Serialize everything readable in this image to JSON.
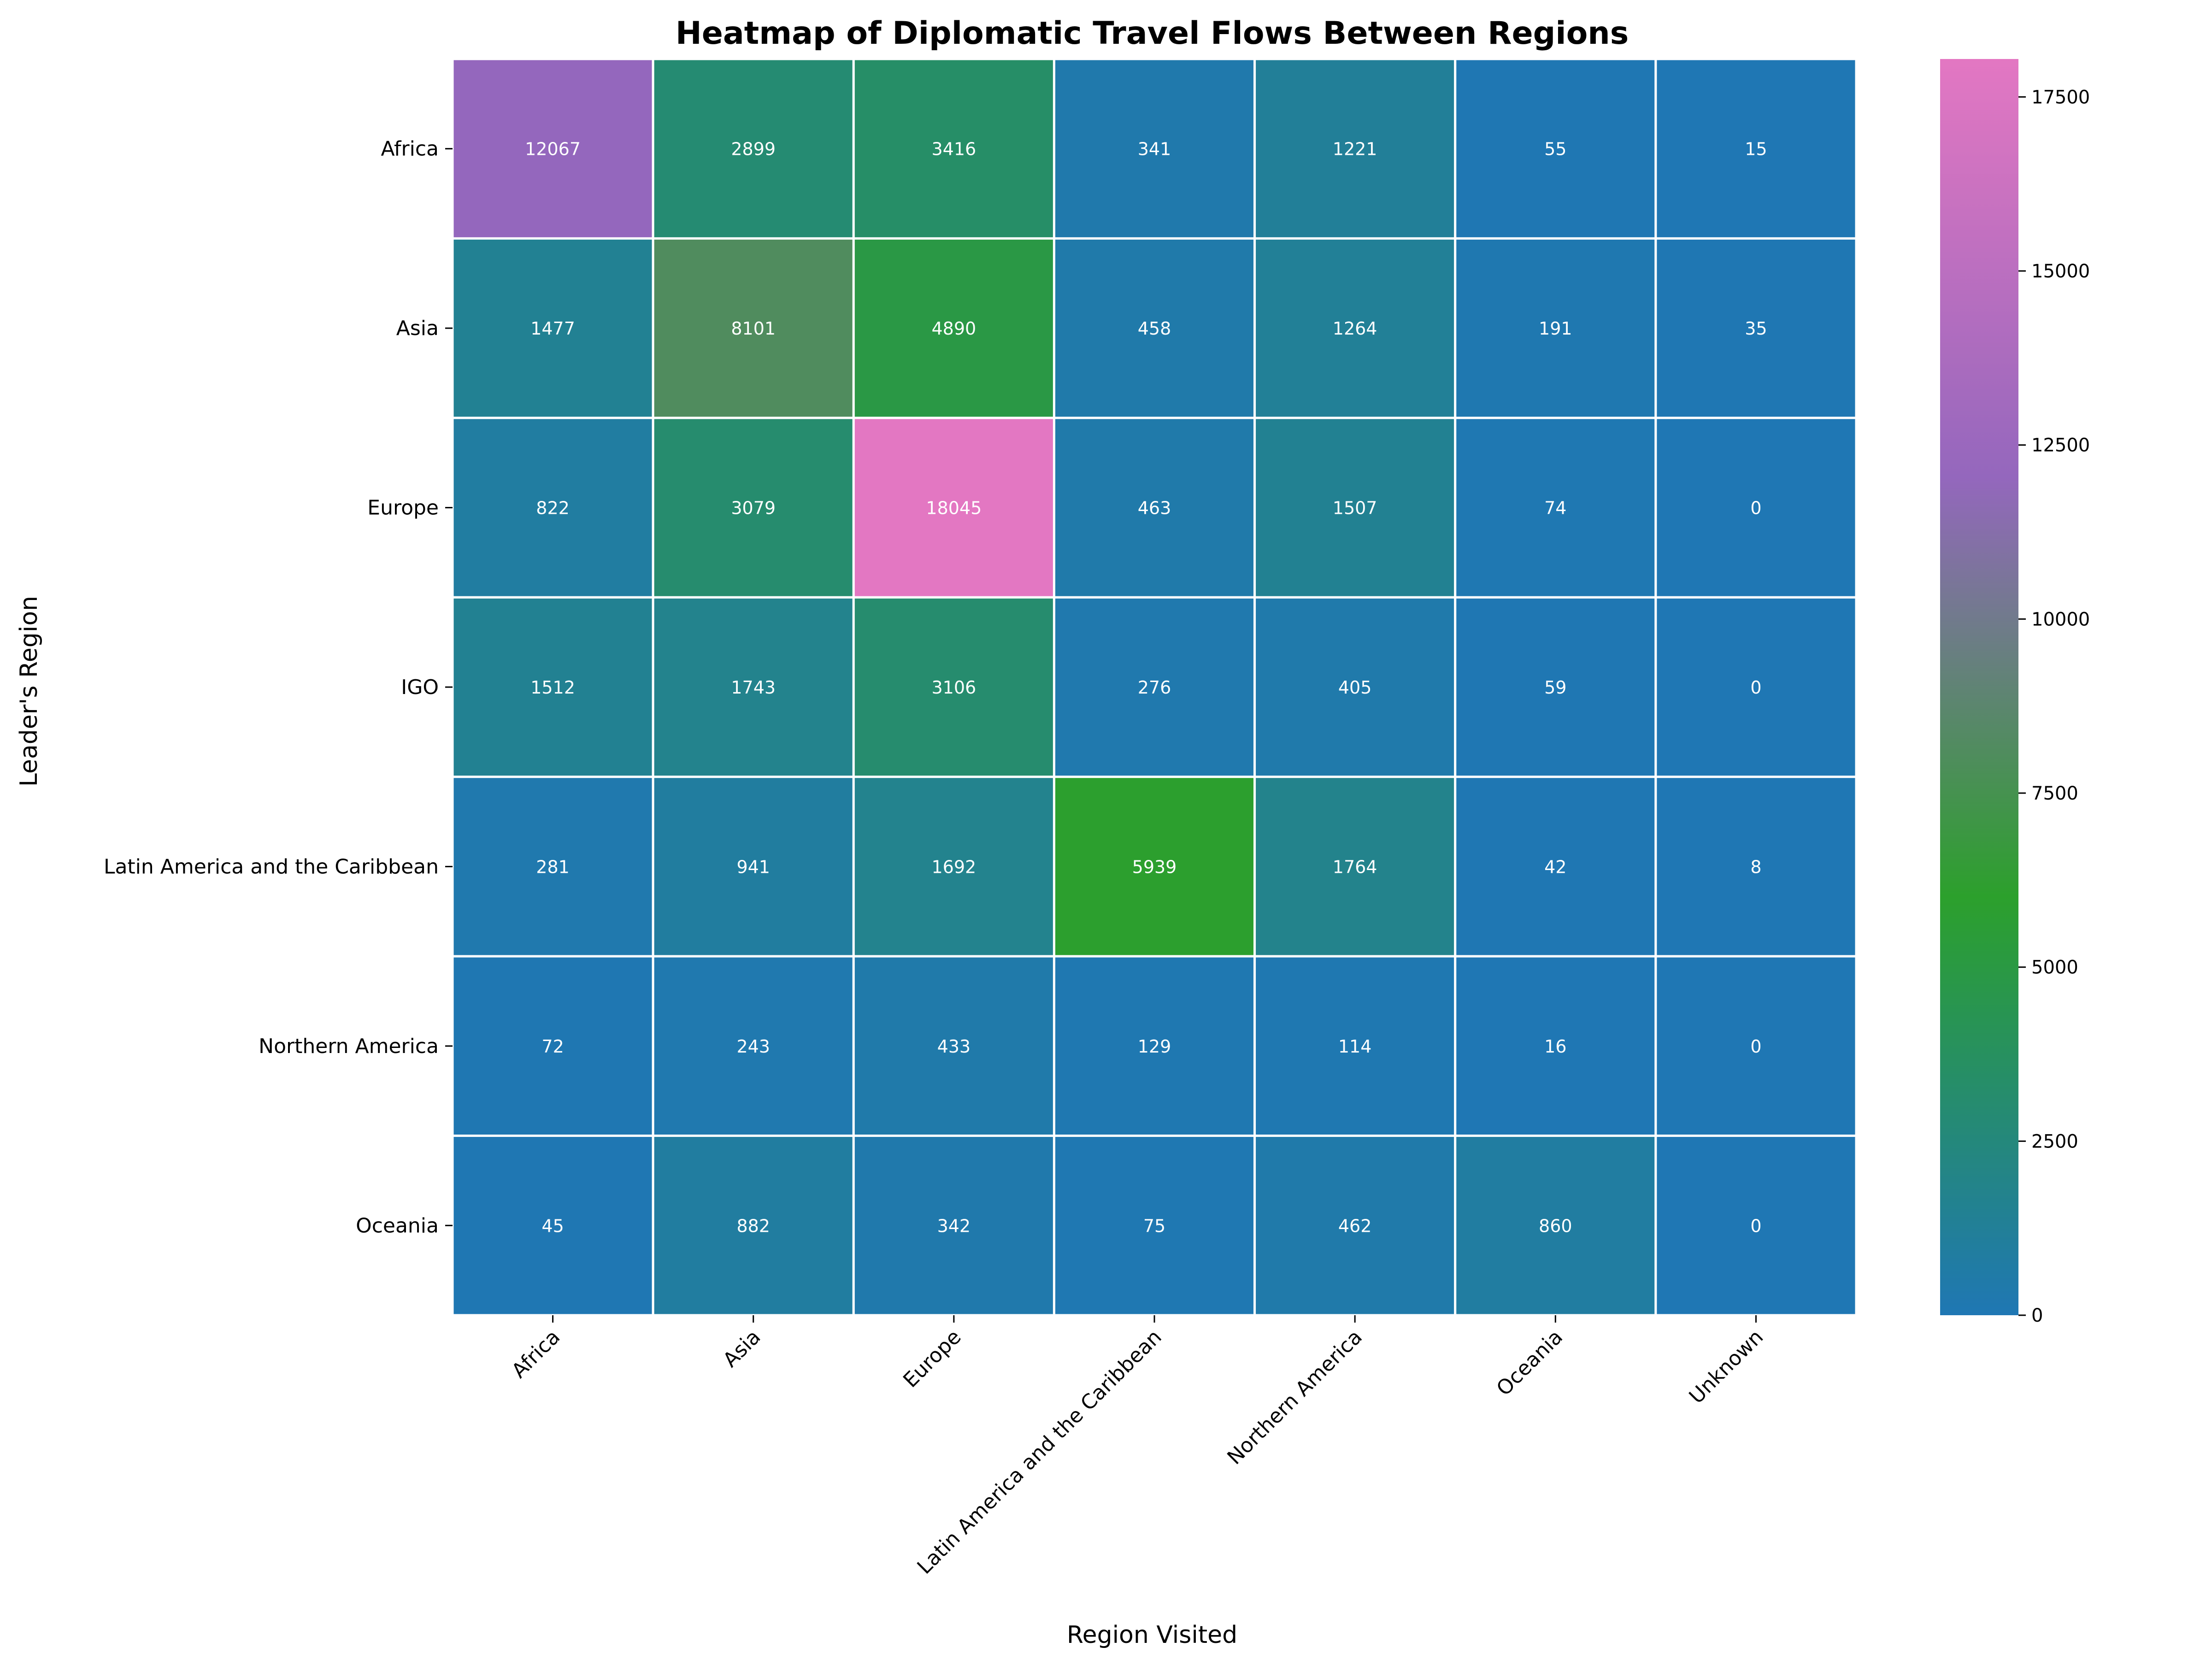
{
  "chart_data": {
    "type": "heatmap",
    "title": "Heatmap of Diplomatic Travel Flows Between Regions",
    "xlabel": "Region Visited",
    "ylabel": "Leader's Region",
    "x_categories": [
      "Africa",
      "Asia",
      "Europe",
      "Latin America and the Caribbean",
      "Northern America",
      "Oceania",
      "Unknown"
    ],
    "y_categories": [
      "Africa",
      "Asia",
      "Europe",
      "IGO",
      "Latin America and the Caribbean",
      "Northern America",
      "Oceania"
    ],
    "values": [
      [
        12067,
        2899,
        3416,
        341,
        1221,
        55,
        15
      ],
      [
        1477,
        8101,
        4890,
        458,
        1264,
        191,
        35
      ],
      [
        822,
        3079,
        18045,
        463,
        1507,
        74,
        0
      ],
      [
        1512,
        1743,
        3106,
        276,
        405,
        59,
        0
      ],
      [
        281,
        941,
        1692,
        5939,
        1764,
        42,
        8
      ],
      [
        72,
        243,
        433,
        129,
        114,
        16,
        0
      ],
      [
        45,
        882,
        342,
        75,
        462,
        860,
        0
      ]
    ],
    "colorbar": {
      "min": 0,
      "max": 18045,
      "ticks": [
        0,
        2500,
        5000,
        7500,
        10000,
        12500,
        15000,
        17500
      ],
      "colors": [
        "#1f77b4",
        "#2ca02c",
        "#9467bd",
        "#e377c2"
      ]
    },
    "annotations": true,
    "grid": false,
    "cell_line_color": "#ffffff"
  }
}
